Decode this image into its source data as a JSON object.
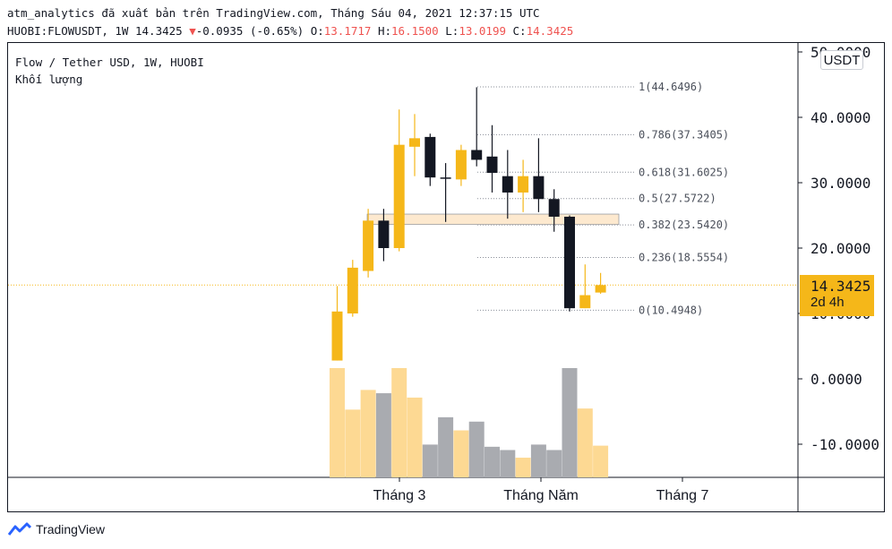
{
  "header": {
    "line1": "atm_analytics đã xuất bản trên TradingView.com, Tháng Sáu 04, 2021 12:37:15 UTC",
    "symbol_info": "HUOBI:FLOWUSDT, 1W 14.3425",
    "change_arrow": "▼",
    "change": "-0.0935 (-0.65%)",
    "ohlc": [
      {
        "label": "O:",
        "value": "13.1717"
      },
      {
        "label": "H:",
        "value": "16.1500"
      },
      {
        "label": "L:",
        "value": "13.0199"
      },
      {
        "label": "C:",
        "value": "14.3425"
      }
    ]
  },
  "legend": {
    "title": "Flow / Tether USD, 1W, HUOBI",
    "volume_label": "Khối lượng"
  },
  "currency_button": "USDT",
  "price_tag": {
    "price": "14.3425",
    "countdown": "2d 4h"
  },
  "footer": {
    "brand": "TradingView"
  },
  "colors": {
    "up": "#f5b719",
    "down": "#131722",
    "vol_up": "#fdd993",
    "vol_down": "#a9abb0",
    "fib": "#8a8f99",
    "zone_fill": "#fde9cf",
    "zone_stroke": "#8a8f99"
  },
  "chart_data": {
    "type": "candlestick",
    "price_axis": {
      "ticks": [
        -10,
        0,
        10,
        20,
        30,
        40,
        50
      ],
      "tick_labels": [
        "-10.0000",
        "0.0000",
        "10.0000",
        "20.0000",
        "30.0000",
        "40.0000",
        "50.0000"
      ],
      "ylim": [
        -15,
        52
      ]
    },
    "time_axis": {
      "labels": [
        "Tháng 3",
        "Tháng Năm",
        "Tháng 7"
      ]
    },
    "candles": [
      {
        "o": 2.8,
        "h": 14.2,
        "l": 2.8,
        "c": 10.3
      },
      {
        "o": 10.0,
        "h": 18.2,
        "l": 9.5,
        "c": 17.0
      },
      {
        "o": 16.5,
        "h": 26.0,
        "l": 15.5,
        "c": 24.2
      },
      {
        "o": 24.2,
        "h": 26.0,
        "l": 18.0,
        "c": 20.0
      },
      {
        "o": 20.0,
        "h": 41.2,
        "l": 19.5,
        "c": 35.8
      },
      {
        "o": 35.5,
        "h": 40.5,
        "l": 31.0,
        "c": 36.8
      },
      {
        "o": 37.0,
        "h": 37.5,
        "l": 29.5,
        "c": 30.8
      },
      {
        "o": 30.8,
        "h": 33.0,
        "l": 24.0,
        "c": 30.6
      },
      {
        "o": 30.5,
        "h": 35.8,
        "l": 29.5,
        "c": 35.0
      },
      {
        "o": 35.0,
        "h": 44.6,
        "l": 32.5,
        "c": 33.5
      },
      {
        "o": 34.0,
        "h": 38.8,
        "l": 28.5,
        "c": 31.5
      },
      {
        "o": 31.0,
        "h": 35.0,
        "l": 24.5,
        "c": 28.5
      },
      {
        "o": 28.5,
        "h": 33.5,
        "l": 25.5,
        "c": 31.0
      },
      {
        "o": 31.0,
        "h": 36.8,
        "l": 25.5,
        "c": 27.5
      },
      {
        "o": 27.5,
        "h": 29.0,
        "l": 22.5,
        "c": 24.8
      },
      {
        "o": 24.8,
        "h": 25.0,
        "l": 10.3,
        "c": 10.8
      },
      {
        "o": 10.8,
        "h": 17.5,
        "l": 10.8,
        "c": 12.8
      },
      {
        "o": 13.2,
        "h": 16.2,
        "l": 13.0,
        "c": 14.3425
      }
    ],
    "volume": [
      100,
      62,
      80,
      77,
      100,
      73,
      30,
      55,
      43,
      51,
      28,
      25,
      18,
      30,
      25,
      100,
      63,
      29
    ],
    "fib_levels": [
      {
        "label": "1(44.6496)",
        "value": 44.6496
      },
      {
        "label": "0.786(37.3405)",
        "value": 37.3405
      },
      {
        "label": "0.618(31.6025)",
        "value": 31.6025
      },
      {
        "label": "0.5(27.5722)",
        "value": 27.5722
      },
      {
        "label": "0.382(23.5420)",
        "value": 23.542
      },
      {
        "label": "0.236(18.5554)",
        "value": 18.5554
      },
      {
        "label": "0(10.4948)",
        "value": 10.4948
      }
    ],
    "zone": {
      "top": 25.2,
      "bottom": 23.6
    },
    "last_price": 14.3425
  }
}
